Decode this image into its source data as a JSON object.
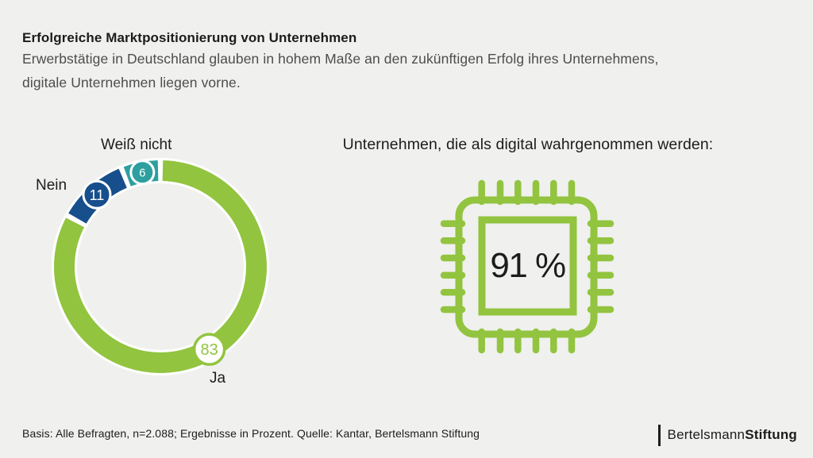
{
  "theme": {
    "background": "#f0f0ee",
    "text": "#1c1c1c",
    "muted_text": "#4d4d4d",
    "green": "#92c43f",
    "blue": "#174e8c",
    "teal": "#2d9f9f"
  },
  "header": {
    "title": "Erfolgreiche Marktpositionierung von Unternehmen",
    "subtitle_line1": "Erwerbstätige in Deutschland glauben in hohem Maße an den zukünftigen Erfolg ihres Unternehmens,",
    "subtitle_line2": "digitale Unternehmen liegen vorne."
  },
  "chart_data": {
    "type": "pie",
    "donut": true,
    "title": "Erfolgreiche Marktpositionierung von Unternehmen",
    "unit": "Prozent",
    "start_angle_deg": 0,
    "direction": "clockwise",
    "legend_position": "labels-around-ring",
    "segments": [
      {
        "label": "Ja",
        "value": 83,
        "color": "#92c43f",
        "badge_style": "outline",
        "badge_r": 19
      },
      {
        "label": "Nein",
        "value": 11,
        "color": "#174e8c",
        "badge_style": "filled",
        "badge_r": 17
      },
      {
        "label": "Weiß nicht",
        "value": 6,
        "color": "#2d9f9f",
        "badge_style": "filled",
        "badge_r": 14.5
      }
    ]
  },
  "digital": {
    "heading": "Unternehmen, die als digital wahrgenommen werden:",
    "value": 91,
    "unit": "%",
    "value_label": "91 %",
    "icon": "cpu-chip-icon",
    "icon_color": "#92c43f"
  },
  "footer": {
    "source": "Basis: Alle Befragten, n=2.088; Ergebnisse in Prozent. Quelle: Kantar, Bertelsmann Stiftung",
    "logo_regular": "Bertelsmann",
    "logo_bold": "Stiftung"
  }
}
